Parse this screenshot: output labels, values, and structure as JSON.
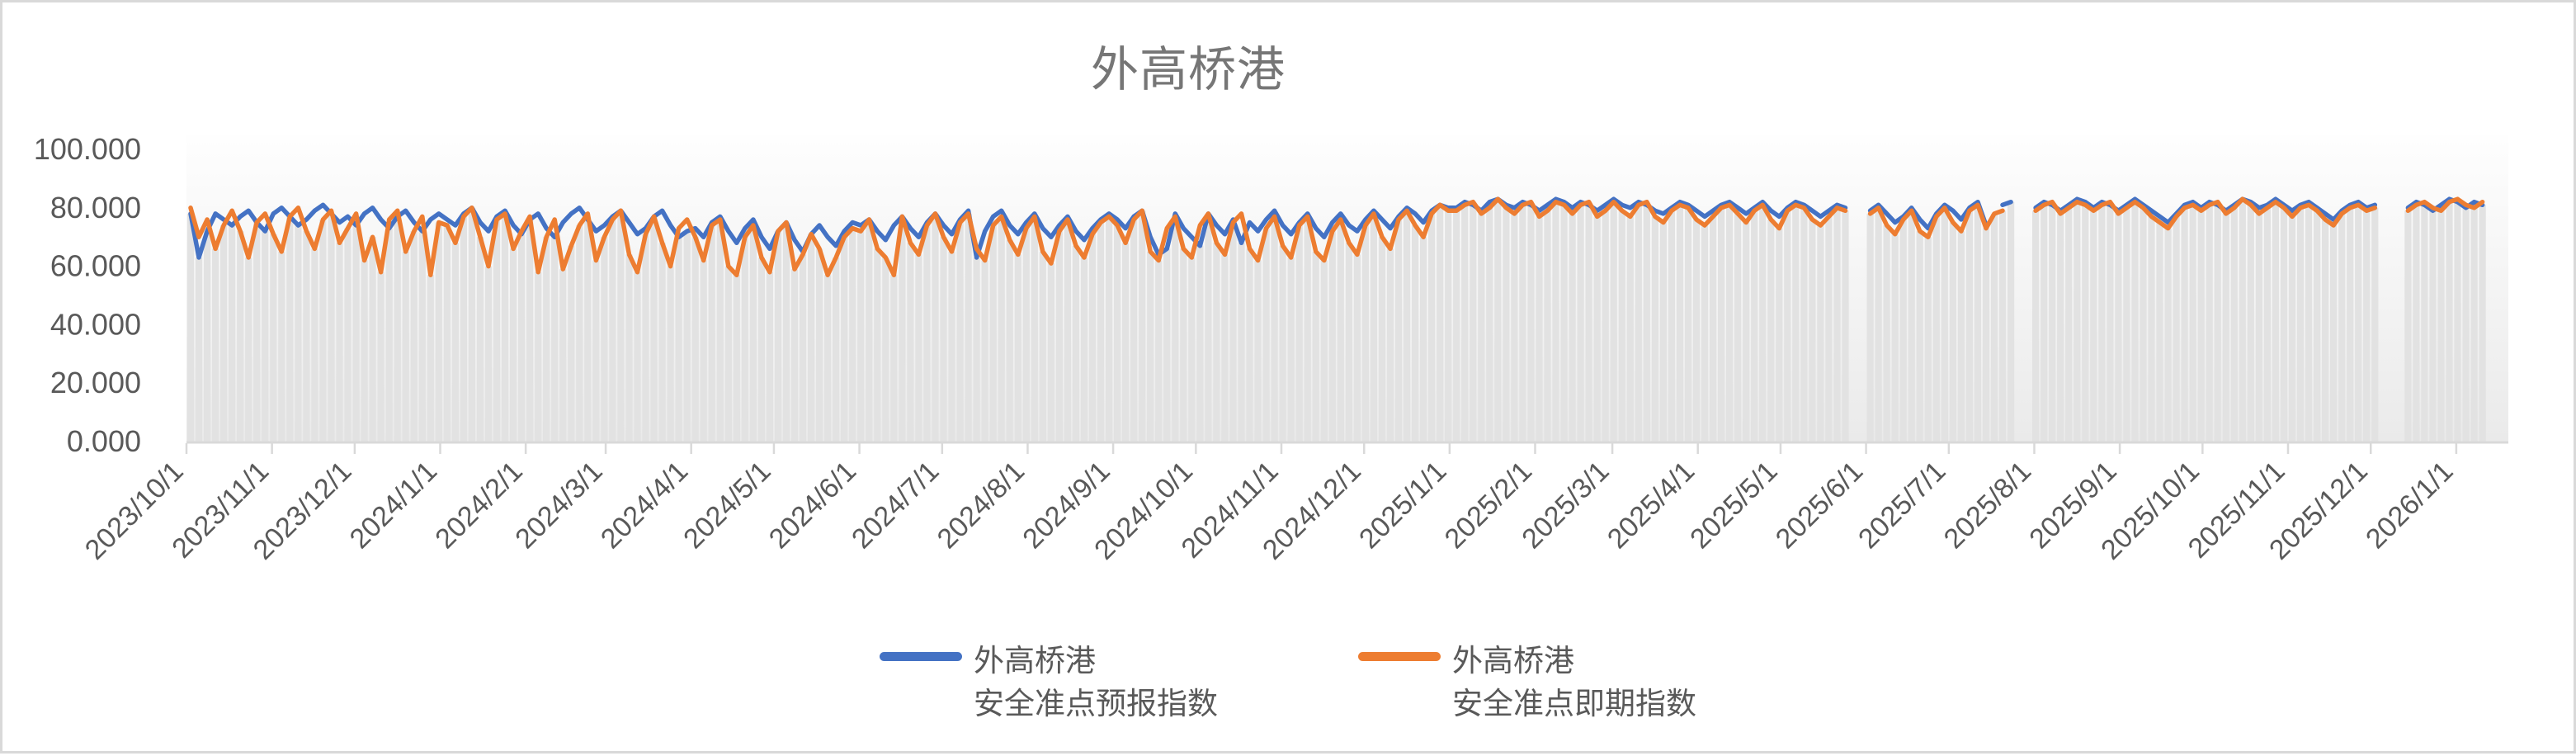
{
  "title": "外高桥港",
  "colors": {
    "forecast_line": "#4472C4",
    "spot_line": "#ED7D31",
    "axis": "#D9D9D9",
    "bar_fill": "#E2E2E2",
    "text": "#595959",
    "title_text": "#767676"
  },
  "y_axis": {
    "tick_labels": [
      "100.000",
      "80.000",
      "60.000",
      "40.000",
      "20.000",
      "0.000"
    ],
    "tick_values": [
      100,
      80,
      60,
      40,
      20,
      0
    ]
  },
  "legend": [
    {
      "line1": "外高桥港",
      "line2": "安全准点预报指数",
      "color": "#4472C4"
    },
    {
      "line1": "外高桥港",
      "line2": "安全准点即期指数",
      "color": "#ED7D31"
    }
  ],
  "chart_data": {
    "type": "line",
    "title": "外高桥港",
    "x_start_date": "2023/10/1",
    "x_step_days": 3,
    "x_tick_labels": [
      "2023/10/1",
      "2023/11/1",
      "2023/12/1",
      "2024/1/1",
      "2024/2/1",
      "2024/3/1",
      "2024/4/1",
      "2024/5/1",
      "2024/6/1",
      "2024/7/1",
      "2024/8/1",
      "2024/9/1",
      "2024/10/1",
      "2024/11/1",
      "2024/12/1",
      "2025/1/1",
      "2025/2/1",
      "2025/3/1",
      "2025/4/1",
      "2025/5/1",
      "2025/6/1",
      "2025/7/1",
      "2025/8/1",
      "2025/9/1",
      "2025/10/1",
      "2025/11/1",
      "2025/12/1",
      "2026/1/1"
    ],
    "ylim": [
      0,
      100
    ],
    "grid": false,
    "legend_position": "bottom",
    "background_bars": "light gray vertical bar behind each data point, height follows the lower of the two series; gaps in the bars mark missing-data periods (early Jun 2025, late Jul 2025, early Dec 2025)",
    "series": [
      {
        "name": "外高桥港安全准点预报指数",
        "color": "#4472C4",
        "values": [
          78,
          63,
          72,
          78,
          76,
          74,
          77,
          79,
          75,
          72,
          78,
          80,
          77,
          74,
          76,
          79,
          81,
          78,
          75,
          77,
          74,
          78,
          80,
          76,
          73,
          77,
          79,
          75,
          72,
          76,
          78,
          76,
          74,
          78,
          80,
          75,
          72,
          77,
          79,
          74,
          71,
          76,
          78,
          73,
          70,
          75,
          78,
          80,
          76,
          72,
          74,
          77,
          79,
          75,
          71,
          73,
          77,
          79,
          74,
          70,
          72,
          73,
          70,
          75,
          77,
          72,
          68,
          73,
          76,
          70,
          66,
          72,
          75,
          69,
          65,
          71,
          74,
          70,
          67,
          72,
          75,
          74,
          76,
          72,
          69,
          74,
          77,
          73,
          70,
          75,
          78,
          74,
          71,
          76,
          79,
          63,
          72,
          77,
          79,
          74,
          71,
          75,
          78,
          73,
          70,
          74,
          77,
          72,
          69,
          73,
          76,
          78,
          76,
          73,
          77,
          79,
          70,
          64,
          66,
          78,
          73,
          70,
          67,
          78,
          74,
          71,
          76,
          68,
          75,
          72,
          76,
          79,
          74,
          71,
          75,
          78,
          73,
          70,
          75,
          78,
          74,
          72,
          76,
          79,
          76,
          73,
          77,
          80,
          78,
          75,
          79,
          81,
          80,
          80,
          82,
          81,
          79,
          82,
          83,
          81,
          80,
          82,
          81,
          79,
          81,
          83,
          82,
          80,
          82,
          81,
          79,
          81,
          83,
          81,
          80,
          82,
          81,
          79,
          78,
          80,
          82,
          81,
          79,
          77,
          79,
          81,
          82,
          80,
          78,
          80,
          82,
          79,
          77,
          80,
          82,
          81,
          79,
          77,
          79,
          81,
          80,
          null,
          null,
          79,
          81,
          78,
          75,
          77,
          80,
          76,
          73,
          78,
          81,
          79,
          76,
          80,
          82,
          74,
          null,
          81,
          82,
          null,
          null,
          80,
          82,
          81,
          79,
          81,
          83,
          82,
          80,
          82,
          81,
          79,
          81,
          83,
          81,
          79,
          77,
          75,
          78,
          81,
          82,
          80,
          82,
          81,
          79,
          81,
          83,
          82,
          80,
          81,
          83,
          81,
          79,
          81,
          82,
          80,
          78,
          76,
          79,
          81,
          82,
          80,
          81,
          null,
          null,
          null,
          80,
          82,
          81,
          79,
          81,
          83,
          82,
          80,
          82,
          81
        ]
      },
      {
        "name": "外高桥港安全准点即期指数",
        "color": "#ED7D31",
        "values": [
          80,
          70,
          76,
          66,
          74,
          79,
          72,
          63,
          75,
          78,
          71,
          65,
          77,
          80,
          72,
          66,
          76,
          79,
          68,
          73,
          78,
          62,
          70,
          58,
          76,
          79,
          65,
          72,
          77,
          57,
          75,
          74,
          68,
          77,
          80,
          70,
          60,
          76,
          78,
          66,
          72,
          77,
          58,
          70,
          76,
          59,
          67,
          74,
          78,
          62,
          70,
          76,
          79,
          64,
          58,
          71,
          77,
          68,
          60,
          73,
          76,
          70,
          62,
          74,
          76,
          60,
          57,
          70,
          74,
          63,
          58,
          72,
          75,
          59,
          64,
          71,
          66,
          57,
          63,
          70,
          73,
          72,
          76,
          66,
          63,
          57,
          77,
          68,
          64,
          74,
          78,
          70,
          65,
          75,
          78,
          66,
          62,
          74,
          77,
          69,
          64,
          73,
          77,
          65,
          61,
          72,
          76,
          67,
          63,
          71,
          75,
          77,
          74,
          68,
          76,
          79,
          65,
          62,
          73,
          77,
          66,
          63,
          74,
          78,
          68,
          64,
          75,
          78,
          66,
          62,
          73,
          77,
          67,
          63,
          74,
          77,
          65,
          62,
          72,
          76,
          68,
          64,
          74,
          78,
          70,
          66,
          76,
          79,
          74,
          70,
          78,
          81,
          79,
          79,
          81,
          82,
          78,
          80,
          83,
          80,
          78,
          81,
          82,
          77,
          79,
          82,
          81,
          78,
          81,
          82,
          77,
          79,
          82,
          79,
          77,
          81,
          82,
          77,
          75,
          79,
          81,
          80,
          76,
          74,
          77,
          80,
          81,
          78,
          75,
          79,
          81,
          76,
          73,
          79,
          81,
          80,
          76,
          74,
          77,
          80,
          79,
          null,
          null,
          78,
          80,
          74,
          71,
          76,
          79,
          72,
          70,
          77,
          80,
          75,
          72,
          79,
          81,
          73,
          78,
          79,
          null,
          null,
          null,
          79,
          81,
          82,
          78,
          80,
          82,
          81,
          79,
          81,
          82,
          78,
          80,
          82,
          80,
          77,
          75,
          73,
          77,
          80,
          81,
          79,
          81,
          82,
          78,
          80,
          83,
          81,
          78,
          80,
          82,
          80,
          77,
          80,
          81,
          79,
          76,
          74,
          78,
          80,
          81,
          79,
          80,
          null,
          null,
          null,
          79,
          81,
          82,
          80,
          79,
          82,
          83,
          81,
          80,
          82
        ]
      }
    ]
  }
}
